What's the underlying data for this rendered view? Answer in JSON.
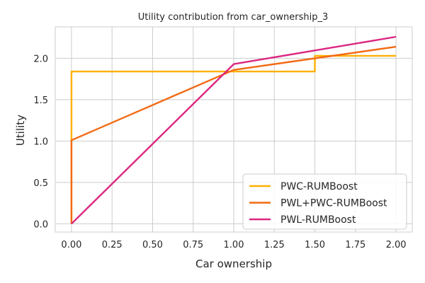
{
  "chart_data": {
    "type": "line",
    "title": "Utility contribution from car_ownership_3",
    "xlabel": "Car ownership",
    "ylabel": "Utility",
    "xlim": [
      -0.1,
      2.1
    ],
    "ylim": [
      -0.1,
      2.38
    ],
    "xticks": [
      "0.00",
      "0.25",
      "0.50",
      "0.75",
      "1.00",
      "1.25",
      "1.50",
      "1.75",
      "2.00"
    ],
    "yticks": [
      "0.0",
      "0.5",
      "1.0",
      "1.5",
      "2.0"
    ],
    "grid": true,
    "legend_position": "lower-right",
    "series": [
      {
        "name": "PWC-RUMBoost",
        "color": "#ffb000",
        "x": [
          0.0,
          0.0,
          1.5,
          1.5,
          2.0
        ],
        "y": [
          0.0,
          1.84,
          1.84,
          2.03,
          2.03
        ]
      },
      {
        "name": "PWL+PWC-RUMBoost",
        "color": "#f26a13",
        "x": [
          0.0,
          0.0,
          1.0,
          2.0
        ],
        "y": [
          0.0,
          1.01,
          1.86,
          2.14
        ]
      },
      {
        "name": "PWL-RUMBoost",
        "color": "#dc267f",
        "x": [
          0.0,
          1.0,
          2.0
        ],
        "y": [
          0.0,
          1.93,
          2.26
        ]
      }
    ]
  }
}
